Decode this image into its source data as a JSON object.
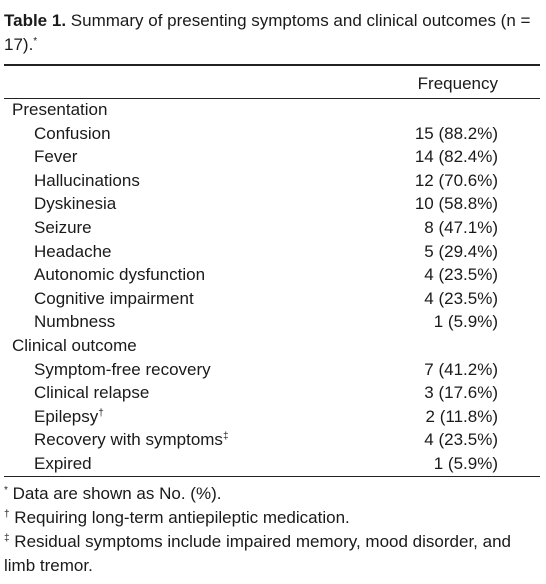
{
  "caption": {
    "label": "Table 1.",
    "text": "Summary of presenting symptoms and clinical outcomes (n = 17).",
    "mark": "*"
  },
  "table": {
    "header": "Frequency",
    "sections": [
      {
        "label": "Presentation",
        "rows": [
          {
            "name": "Confusion",
            "frequency": "15 (88.2%)"
          },
          {
            "name": "Fever",
            "frequency": "14 (82.4%)"
          },
          {
            "name": "Hallucinations",
            "frequency": "12 (70.6%)"
          },
          {
            "name": "Dyskinesia",
            "frequency": "10 (58.8%)"
          },
          {
            "name": "Seizure",
            "frequency": "8 (47.1%)"
          },
          {
            "name": "Headache",
            "frequency": "5 (29.4%)"
          },
          {
            "name": "Autonomic dysfunction",
            "frequency": "4 (23.5%)"
          },
          {
            "name": "Cognitive impairment",
            "frequency": "4 (23.5%)"
          },
          {
            "name": "Numbness",
            "frequency": "1 (5.9%)"
          }
        ]
      },
      {
        "label": "Clinical outcome",
        "rows": [
          {
            "name": "Symptom-free recovery",
            "frequency": "7 (41.2%)"
          },
          {
            "name": "Clinical relapse",
            "frequency": "3 (17.6%)"
          },
          {
            "name": "Epilepsy",
            "mark": "†",
            "frequency": "2 (11.8%)"
          },
          {
            "name": "Recovery with symptoms",
            "mark": "‡",
            "frequency": "4 (23.5%)"
          },
          {
            "name": "Expired",
            "frequency": "1 (5.9%)"
          }
        ]
      }
    ]
  },
  "footnotes": [
    {
      "mark": "*",
      "text": "Data are shown as No. (%)."
    },
    {
      "mark": "†",
      "text": "Requiring long-term antiepileptic medication."
    },
    {
      "mark": "‡",
      "text": "Residual symptoms include impaired memory, mood disorder, and limb tremor."
    }
  ]
}
